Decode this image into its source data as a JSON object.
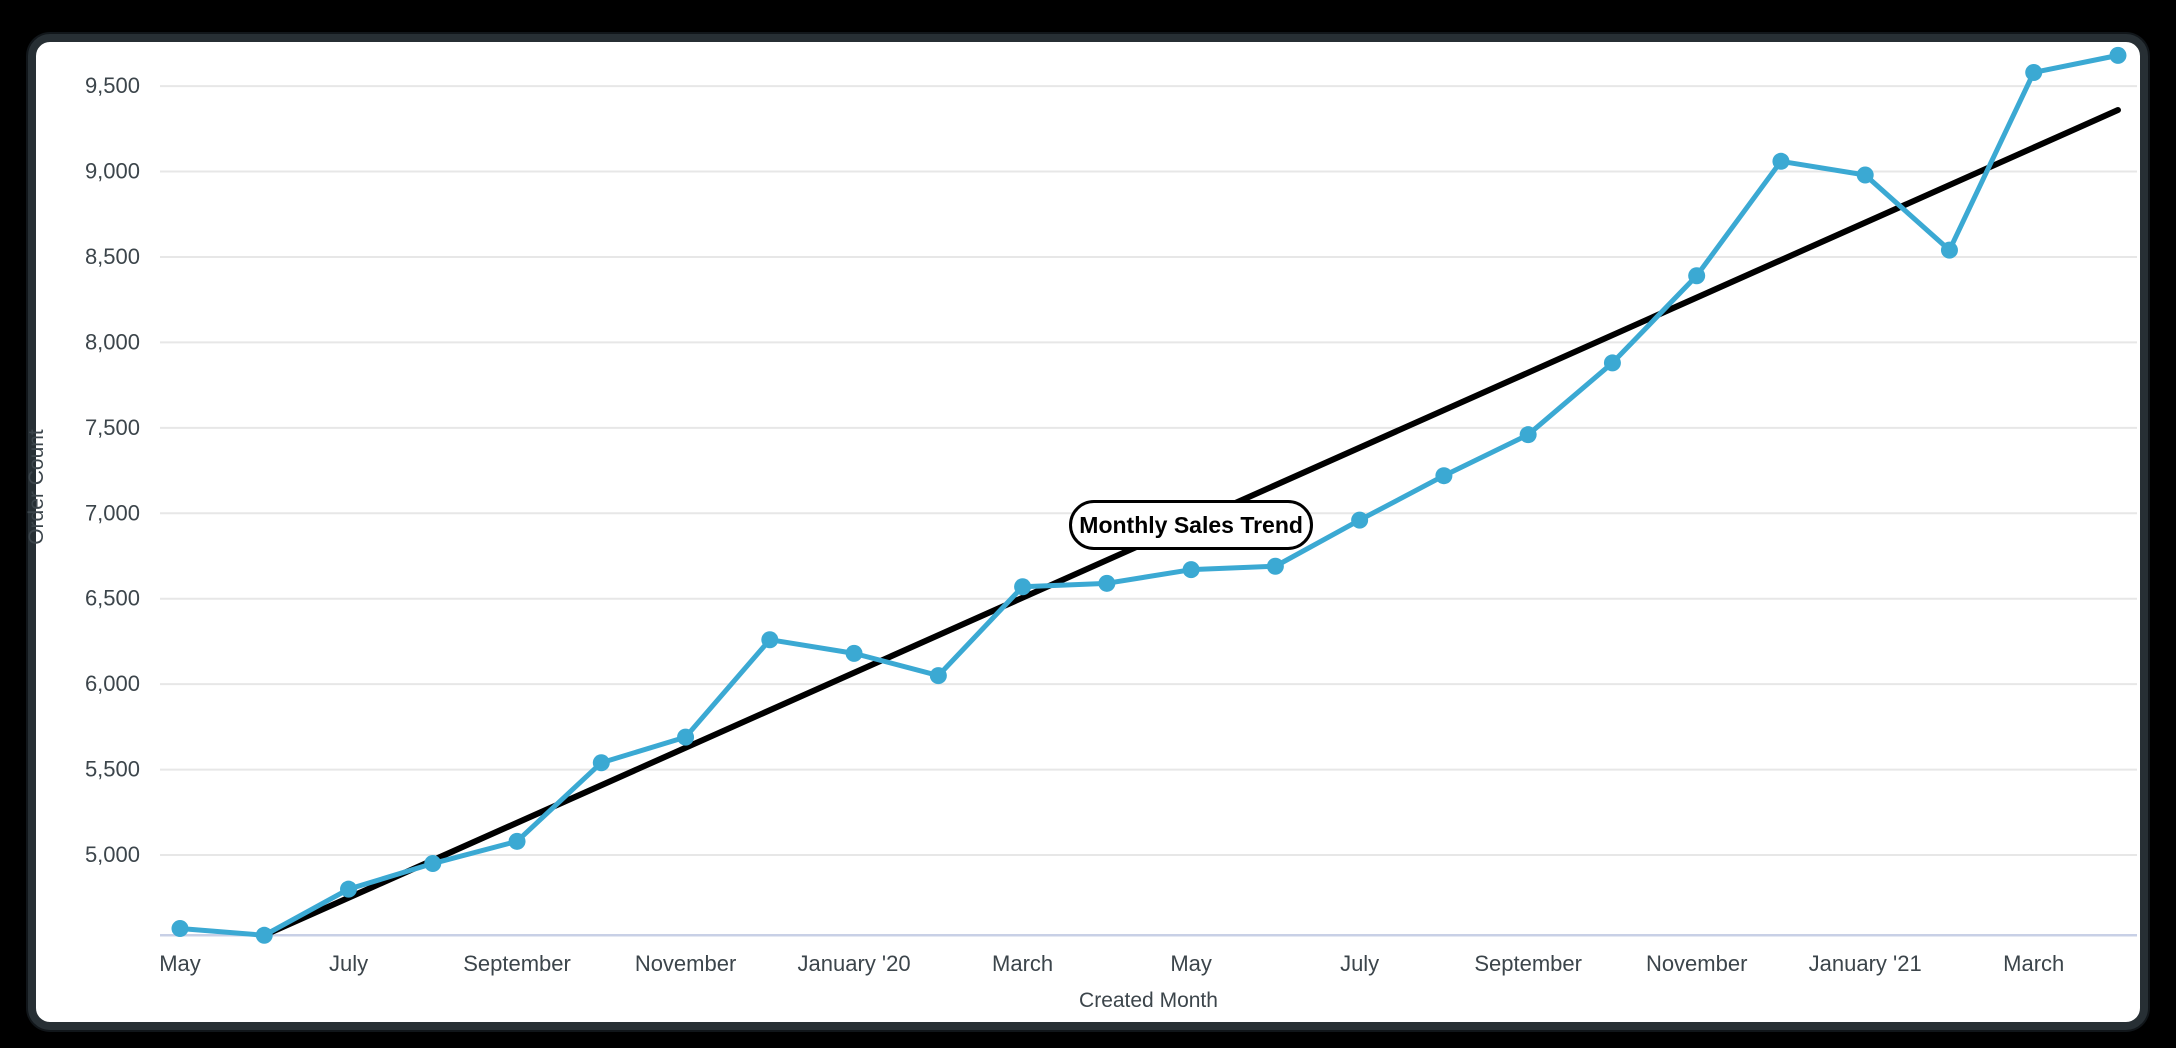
{
  "window": {
    "background_color": "#000000",
    "card_background_color": "#ffffff",
    "card_border_color": "#272f34"
  },
  "chart_data": {
    "type": "line",
    "xlabel": "Created Month",
    "ylabel": "Order Count",
    "grid": "horizontal",
    "legend_position": "none",
    "categories": [
      "May '19",
      "June '19",
      "July '19",
      "August '19",
      "September '19",
      "October '19",
      "November '19",
      "December '19",
      "January '20",
      "February '20",
      "March '20",
      "April '20",
      "May '20",
      "June '20",
      "July '20",
      "August '20",
      "September '20",
      "October '20",
      "November '20",
      "December '20",
      "January '21",
      "February '21",
      "March '21",
      "April '21"
    ],
    "series": [
      {
        "name": "Order Count",
        "color": "#3BA9D3",
        "marker": "circle",
        "values": [
          4570,
          4530,
          4800,
          4950,
          5080,
          5540,
          5690,
          6260,
          6180,
          6050,
          6570,
          6590,
          6670,
          6690,
          6960,
          7220,
          7460,
          7880,
          8390,
          9060,
          8980,
          8540,
          9580,
          9680
        ]
      }
    ],
    "trend_line": {
      "name": "Linear trend",
      "color": "#000000",
      "start_index": 1,
      "start_value": 4530,
      "end_index": 23,
      "end_value": 9360
    },
    "annotation": {
      "text": "Monthly Sales Trend",
      "anchor_index": 12,
      "anchor_value": 6930
    },
    "x_ticks": [
      {
        "index": 0,
        "label": "May"
      },
      {
        "index": 2,
        "label": "July"
      },
      {
        "index": 4,
        "label": "September"
      },
      {
        "index": 6,
        "label": "November"
      },
      {
        "index": 8,
        "label": "January '20"
      },
      {
        "index": 10,
        "label": "March"
      },
      {
        "index": 12,
        "label": "May"
      },
      {
        "index": 14,
        "label": "July"
      },
      {
        "index": 16,
        "label": "September"
      },
      {
        "index": 18,
        "label": "November"
      },
      {
        "index": 20,
        "label": "January '21"
      },
      {
        "index": 22,
        "label": "March"
      }
    ],
    "y_ticks": [
      {
        "value": 5000,
        "label": "5,000"
      },
      {
        "value": 5500,
        "label": "5,500"
      },
      {
        "value": 6000,
        "label": "6,000"
      },
      {
        "value": 6500,
        "label": "6,500"
      },
      {
        "value": 7000,
        "label": "7,000"
      },
      {
        "value": 7500,
        "label": "7,500"
      },
      {
        "value": 8000,
        "label": "8,000"
      },
      {
        "value": 8500,
        "label": "8,500"
      },
      {
        "value": 9000,
        "label": "9,000"
      },
      {
        "value": 9500,
        "label": "9,500"
      }
    ],
    "ylim": [
      4530,
      9770
    ],
    "colors": {
      "gridline": "#E7E7E7",
      "axis_baseline": "#C8D0E6",
      "tick_label": "#3C454B",
      "axis_title": "#3C454B"
    }
  }
}
